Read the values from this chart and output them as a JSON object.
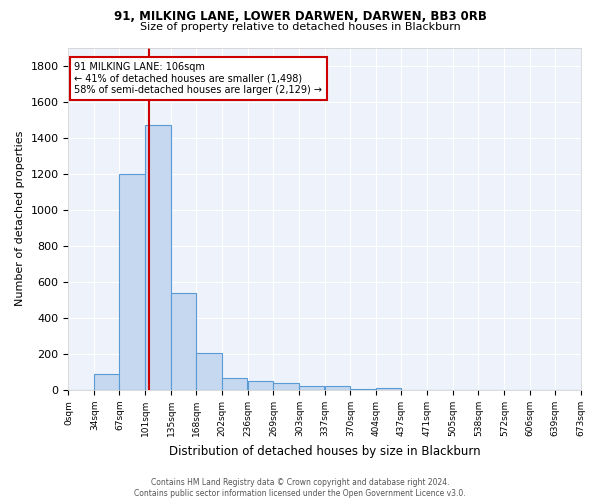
{
  "title_line1": "91, MILKING LANE, LOWER DARWEN, DARWEN, BB3 0RB",
  "title_line2": "Size of property relative to detached houses in Blackburn",
  "xlabel": "Distribution of detached houses by size in Blackburn",
  "ylabel": "Number of detached properties",
  "bar_left_edges": [
    0,
    34,
    67,
    101,
    135,
    168,
    202,
    236,
    269,
    303,
    337,
    370,
    404,
    437,
    471,
    505,
    538,
    572,
    606,
    639
  ],
  "bar_heights": [
    0,
    90,
    1200,
    1470,
    540,
    205,
    65,
    50,
    40,
    25,
    20,
    5,
    10,
    0,
    0,
    0,
    0,
    0,
    0,
    0
  ],
  "bin_width": 33,
  "bar_color": "#c5d8f0",
  "bar_edge_color": "#5b9bd5",
  "property_size": 106,
  "red_line_color": "#cc0000",
  "annotation_text": "91 MILKING LANE: 106sqm\n← 41% of detached houses are smaller (1,498)\n58% of semi-detached houses are larger (2,129) →",
  "annotation_box_color": "white",
  "annotation_box_edge": "#cc0000",
  "tick_labels": [
    "0sqm",
    "34sqm",
    "67sqm",
    "101sqm",
    "135sqm",
    "168sqm",
    "202sqm",
    "236sqm",
    "269sqm",
    "303sqm",
    "337sqm",
    "370sqm",
    "404sqm",
    "437sqm",
    "471sqm",
    "505sqm",
    "538sqm",
    "572sqm",
    "606sqm",
    "639sqm",
    "673sqm"
  ],
  "ylim": [
    0,
    1900
  ],
  "background_color": "#eef3fb",
  "grid_color": "white",
  "footer_text": "Contains HM Land Registry data © Crown copyright and database right 2024.\nContains public sector information licensed under the Open Government Licence v3.0.",
  "yticks": [
    0,
    200,
    400,
    600,
    800,
    1000,
    1200,
    1400,
    1600,
    1800
  ]
}
